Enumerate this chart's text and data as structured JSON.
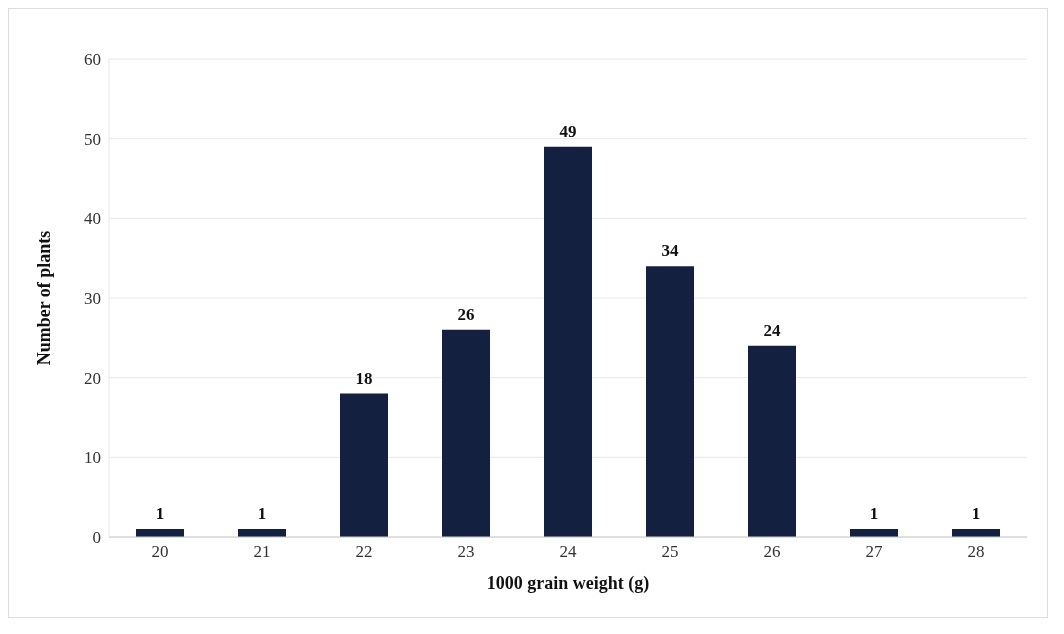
{
  "chart_data": {
    "type": "bar",
    "xlabel": "1000 grain weight (g)",
    "ylabel": "Number of plants",
    "categories": [
      "20",
      "21",
      "22",
      "23",
      "24",
      "25",
      "26",
      "27",
      "28"
    ],
    "values": [
      1,
      1,
      18,
      26,
      49,
      34,
      24,
      1,
      1
    ],
    "color": "#13203f",
    "ylim": [
      0,
      60
    ],
    "yticks": [
      0,
      10,
      20,
      30,
      40,
      50,
      60
    ],
    "grid": "y",
    "data_labels": true
  }
}
